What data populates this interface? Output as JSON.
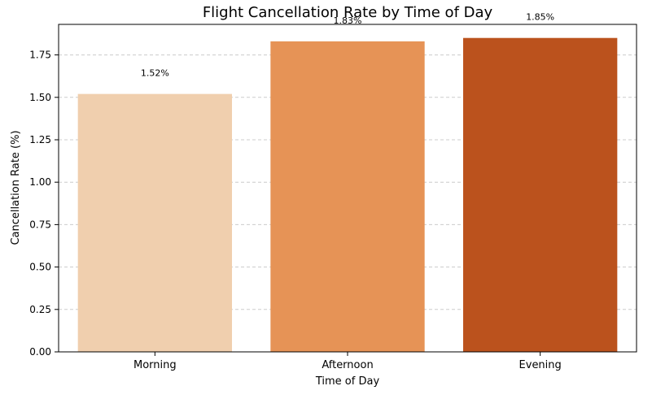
{
  "chart_data": {
    "type": "bar",
    "title": "Flight Cancellation Rate by Time of Day",
    "xlabel": "Time of Day",
    "ylabel": "Cancellation Rate (%)",
    "categories": [
      "Morning",
      "Afternoon",
      "Evening"
    ],
    "values": [
      1.52,
      1.83,
      1.85
    ],
    "data_labels": [
      "1.52%",
      "1.83%",
      "1.85%"
    ],
    "colors": [
      "#f0cfae",
      "#e69356",
      "#bb521d"
    ],
    "ylim": [
      0,
      1.93
    ],
    "yticks": [
      0,
      0.25,
      0.5,
      0.75,
      1.0,
      1.25,
      1.5,
      1.75
    ],
    "ytick_labels": [
      "0.00",
      "0.25",
      "0.50",
      "0.75",
      "1.00",
      "1.25",
      "1.50",
      "1.75"
    ],
    "grid": "y-dashed",
    "legend": "none"
  }
}
